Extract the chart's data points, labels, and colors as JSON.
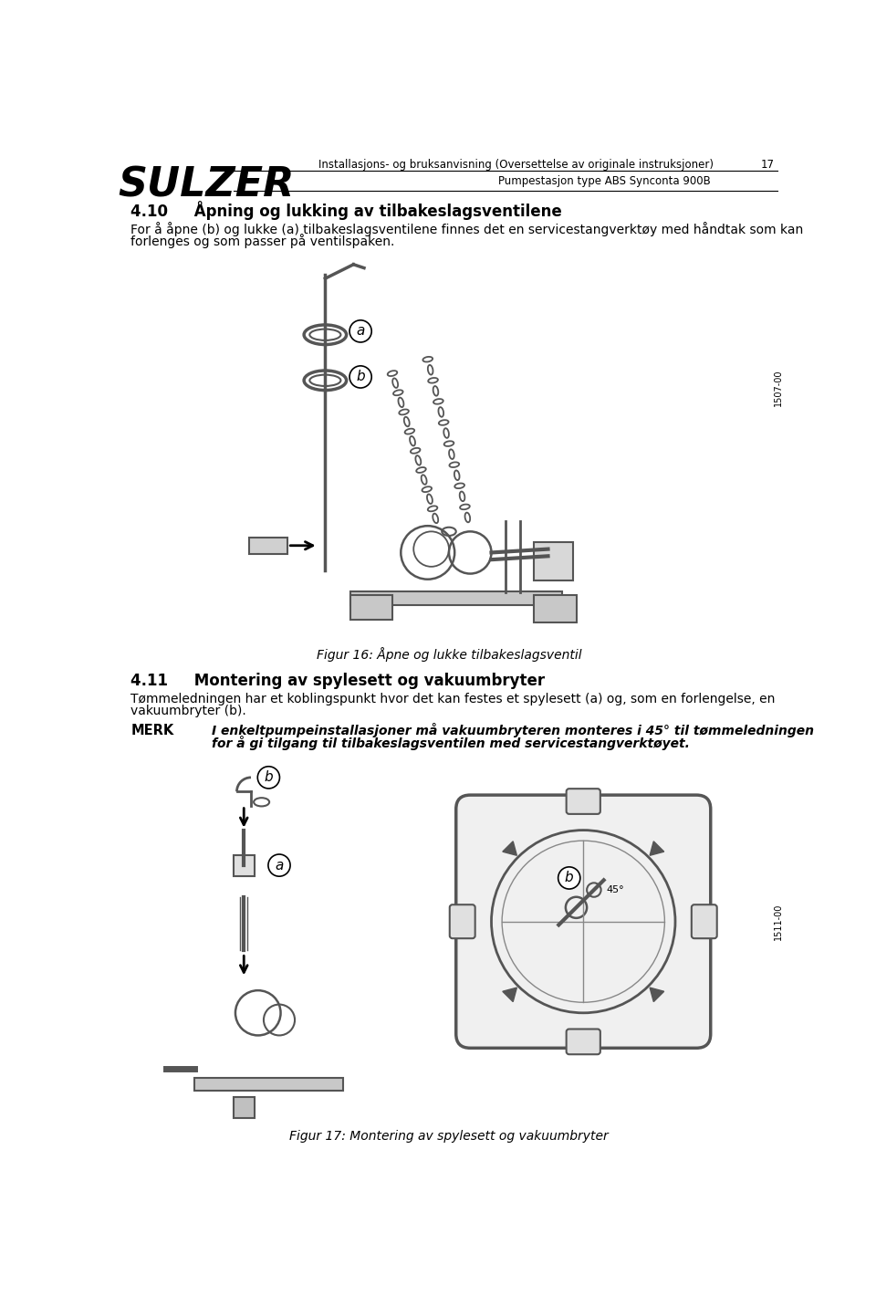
{
  "page_number": "17",
  "header_title": "Installasjons- og bruksanvisning (Oversettelse av originale instruksjoner)",
  "header_subtitle": "Pumpestasjon type ABS Synconta 900B",
  "logo_text": "SULZER",
  "section_410_title": "4.10     Åpning og lukking av tilbakeslagsventilene",
  "section_410_text1": "For å åpne (b) og lukke (a) tilbakeslagsventilene finnes det en servicestangverktøy med håndtak som kan",
  "section_410_text2": "forlenges og som passer på ventilspaken.",
  "side_label": "1507-00",
  "fig16_caption": "Figur 16: Åpne og lukke tilbakeslagsventil",
  "section_411_title": "4.11     Montering av spylesett og vakuumbryter",
  "section_411_text1": "Tømmeledningen har et koblingspunkt hvor det kan festes et spylesett (a) og, som en forlengelse, en",
  "section_411_text2": "vakuumbryter (b).",
  "merk_label": "MERK",
  "merk_text1": "I enkeltpumpeinstallasjoner må vakuumbryteren monteres i 45° til tømmeledningen",
  "merk_text2": "for å gi tilgang til tilbakeslagsventilen med servicestangverktøyet.",
  "side_label2": "1511-00",
  "fig17_caption": "Figur 17: Montering av spylesett og vakuumbryter",
  "bg_color": "#ffffff",
  "text_color": "#000000"
}
